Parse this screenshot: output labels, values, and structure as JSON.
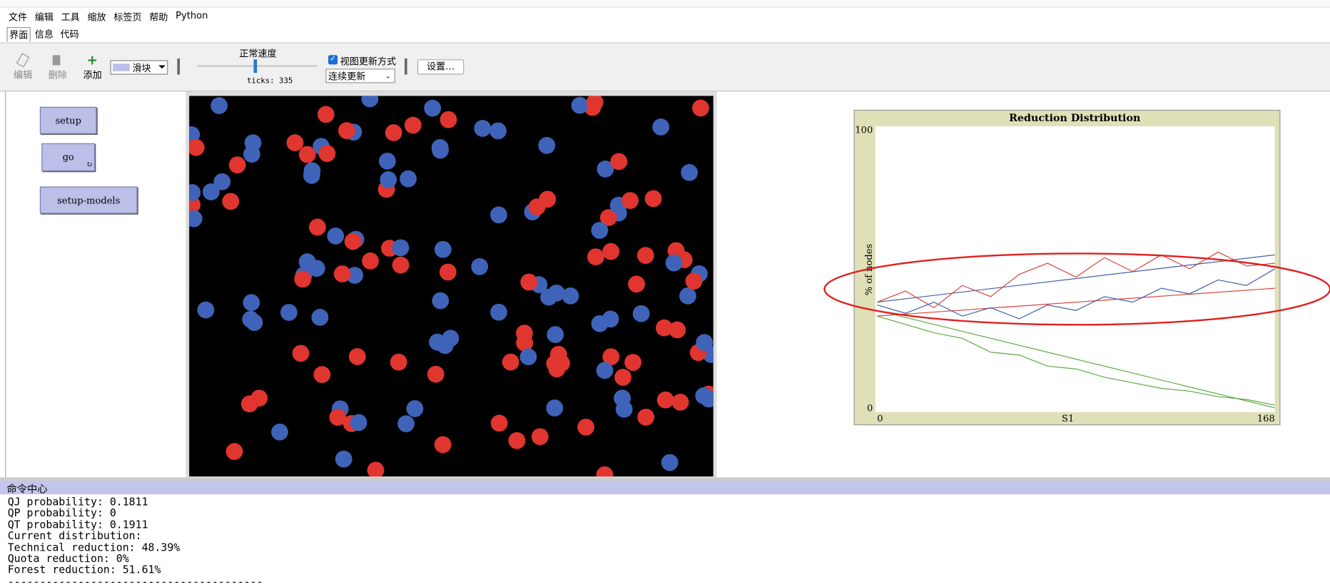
{
  "menu": [
    "文件",
    "编辑",
    "工具",
    "缩放",
    "标签页",
    "帮助",
    "Python"
  ],
  "tabs": [
    "界面",
    "信息",
    "代码"
  ],
  "toolbar": {
    "edit": "编辑",
    "delete": "删除",
    "add": "添加",
    "widget_type": "滑块",
    "speed_label": "正常速度",
    "ticks": "ticks: 335",
    "view_updates": "视图更新方式",
    "update_mode": "连续更新",
    "settings": "设置…"
  },
  "buttons": [
    "setup",
    "go",
    "setup-models"
  ],
  "chart_data": {
    "type": "line",
    "title": "Reduction Distribution",
    "x_label": "S1",
    "y_label": "% of nodes",
    "x": [
      0,
      12,
      24,
      36,
      48,
      60,
      72,
      84,
      96,
      108,
      120,
      132,
      144,
      156,
      168
    ],
    "xlim": [
      0,
      168
    ],
    "xticks": [
      0,
      168
    ],
    "ylim": [
      0,
      100
    ],
    "yticks": [
      0,
      100
    ],
    "series": [
      {
        "color": "#d9403a",
        "values": [
          38,
          42,
          36,
          44,
          40,
          48,
          52,
          47,
          54,
          49,
          55,
          50,
          56,
          51,
          52
        ]
      },
      {
        "color": "#3d5fa8",
        "values": [
          37,
          34,
          38,
          33,
          36,
          32,
          37,
          35,
          40,
          38,
          43,
          41,
          46,
          44,
          50
        ]
      },
      {
        "color": "#5aab45",
        "values": [
          33,
          30,
          27,
          25,
          20,
          19,
          15,
          14,
          11,
          9,
          7,
          6,
          4,
          3,
          1
        ]
      }
    ],
    "trend_lines": [
      {
        "color": "#3d5fa8",
        "x": [
          0,
          168
        ],
        "values": [
          38,
          55
        ]
      },
      {
        "color": "#d9403a",
        "x": [
          0,
          168
        ],
        "values": [
          33,
          43
        ]
      },
      {
        "color": "#5aab45",
        "x": [
          0,
          168
        ],
        "values": [
          35,
          0
        ]
      }
    ]
  },
  "command_center": {
    "title": "命令中心",
    "lines": [
      "QJ probability: 0.1811",
      "QP probability: 0",
      "QT probability: 0.1911",
      "Current distribution:",
      "Technical reduction: 48.39%",
      "Quota reduction: 0%",
      "Forest reduction: 51.61%",
      "----------------------------------------"
    ]
  }
}
